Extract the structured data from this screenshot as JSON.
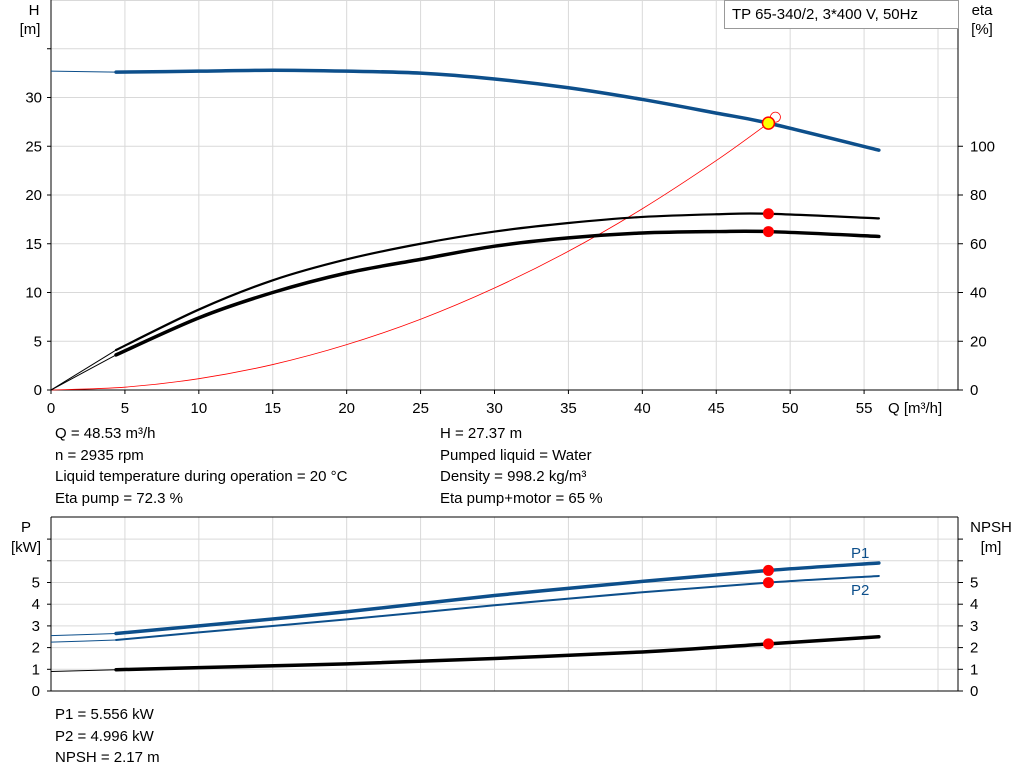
{
  "title": "TP 65-340/2, 3*400 V, 50Hz",
  "colors": {
    "blue": "#0d4f8b",
    "black": "#000000",
    "red": "#ff0000",
    "operating_point": "#ffff00",
    "grid": "#d9d9d9"
  },
  "chart_data": [
    {
      "type": "line",
      "x_label": "Q [m³/h]",
      "x_ticks": [
        "0",
        "5",
        "10",
        "15",
        "20",
        "25",
        "30",
        "35",
        "40",
        "45",
        "50",
        "55"
      ],
      "xlim": [
        0,
        60
      ],
      "y_left_label": [
        "H",
        "[m]"
      ],
      "y_left_ticks": [
        "0",
        "5",
        "10",
        "15",
        "20",
        "25",
        "30"
      ],
      "y_left_lim": [
        0,
        40
      ],
      "y_right_label": [
        "eta",
        "[%]"
      ],
      "y_right_ticks": [
        "0",
        "20",
        "40",
        "60",
        "80",
        "100"
      ],
      "y_right_lim": [
        0,
        160
      ],
      "grid": true,
      "series": [
        {
          "id": "H",
          "axis": "left",
          "color": "blue",
          "x": [
            0,
            4.4,
            10,
            15,
            20,
            25,
            30,
            35,
            40,
            45,
            48.53,
            56
          ],
          "y": [
            32.7,
            32.6,
            32.7,
            32.8,
            32.7,
            32.5,
            31.9,
            31.0,
            29.8,
            28.4,
            27.37,
            24.6
          ]
        },
        {
          "id": "eta_pump",
          "axis": "right",
          "color": "black",
          "x": [
            0,
            4.4,
            10,
            15,
            20,
            25,
            30,
            35,
            40,
            45,
            48.53,
            56
          ],
          "y": [
            0,
            16.4,
            33,
            45,
            53.6,
            60,
            65,
            68.5,
            71,
            72.1,
            72.3,
            70.4
          ]
        },
        {
          "id": "eta_pump_motor",
          "axis": "right",
          "color": "black",
          "x": [
            0,
            4.4,
            10,
            15,
            20,
            25,
            30,
            35,
            40,
            45,
            48.53,
            56
          ],
          "y": [
            0,
            14.4,
            29.6,
            40,
            48,
            53.6,
            59,
            62.4,
            64.4,
            65,
            65,
            63
          ]
        },
        {
          "id": "system_curve",
          "axis": "left",
          "color": "red",
          "x": [
            0,
            5,
            10,
            15,
            20,
            25,
            30,
            35,
            40,
            45,
            48.53
          ],
          "y": [
            0,
            0.29,
            1.16,
            2.61,
            4.65,
            7.26,
            10.46,
            14.23,
            18.59,
            23.53,
            27.37
          ]
        }
      ],
      "operating_point": {
        "Q": 48.53,
        "H": 27.37,
        "eta_pump": 72.3,
        "eta_pump_motor": 65
      }
    },
    {
      "type": "line",
      "xlim": [
        0,
        60
      ],
      "y_left_label": [
        "P",
        "[kW]"
      ],
      "y_left_ticks": [
        "0",
        "1",
        "2",
        "3",
        "4",
        "5"
      ],
      "y_left_lim": [
        0,
        8
      ],
      "y_right_label": [
        "NPSH",
        "[m]"
      ],
      "y_right_ticks": [
        "0",
        "1",
        "2",
        "3",
        "4",
        "5"
      ],
      "y_right_lim": [
        0,
        8
      ],
      "grid": true,
      "series": [
        {
          "id": "P1",
          "name": "P1",
          "color": "blue",
          "x": [
            0,
            4.4,
            10,
            20,
            30,
            40,
            48.53,
            56
          ],
          "y": [
            2.55,
            2.65,
            3.0,
            3.65,
            4.4,
            5.05,
            5.556,
            5.9
          ]
        },
        {
          "id": "P2",
          "name": "P2",
          "color": "blue",
          "x": [
            0,
            4.4,
            10,
            20,
            30,
            40,
            48.53,
            56
          ],
          "y": [
            2.25,
            2.35,
            2.7,
            3.3,
            3.95,
            4.55,
            4.996,
            5.3
          ]
        },
        {
          "id": "NPSH",
          "color": "black",
          "x": [
            0,
            4.4,
            10,
            20,
            30,
            40,
            48.53,
            56
          ],
          "y": [
            0.9,
            0.98,
            1.08,
            1.25,
            1.5,
            1.8,
            2.17,
            2.5
          ]
        }
      ],
      "operating_point": {
        "Q": 48.53,
        "P1": 5.556,
        "P2": 4.996,
        "NPSH": 2.17
      }
    }
  ],
  "info_left": [
    "Q = 48.53 m³/h",
    "n = 2935 rpm",
    "Liquid temperature during operation = 20 °C",
    "Eta pump = 72.3 %"
  ],
  "info_right": [
    "H = 27.37 m",
    "Pumped liquid = Water",
    "Density = 998.2 kg/m³",
    "Eta pump+motor = 65 %"
  ],
  "info_bottom": [
    "P1 = 5.556 kW",
    "P2 = 4.996 kW",
    "NPSH = 2.17 m"
  ]
}
